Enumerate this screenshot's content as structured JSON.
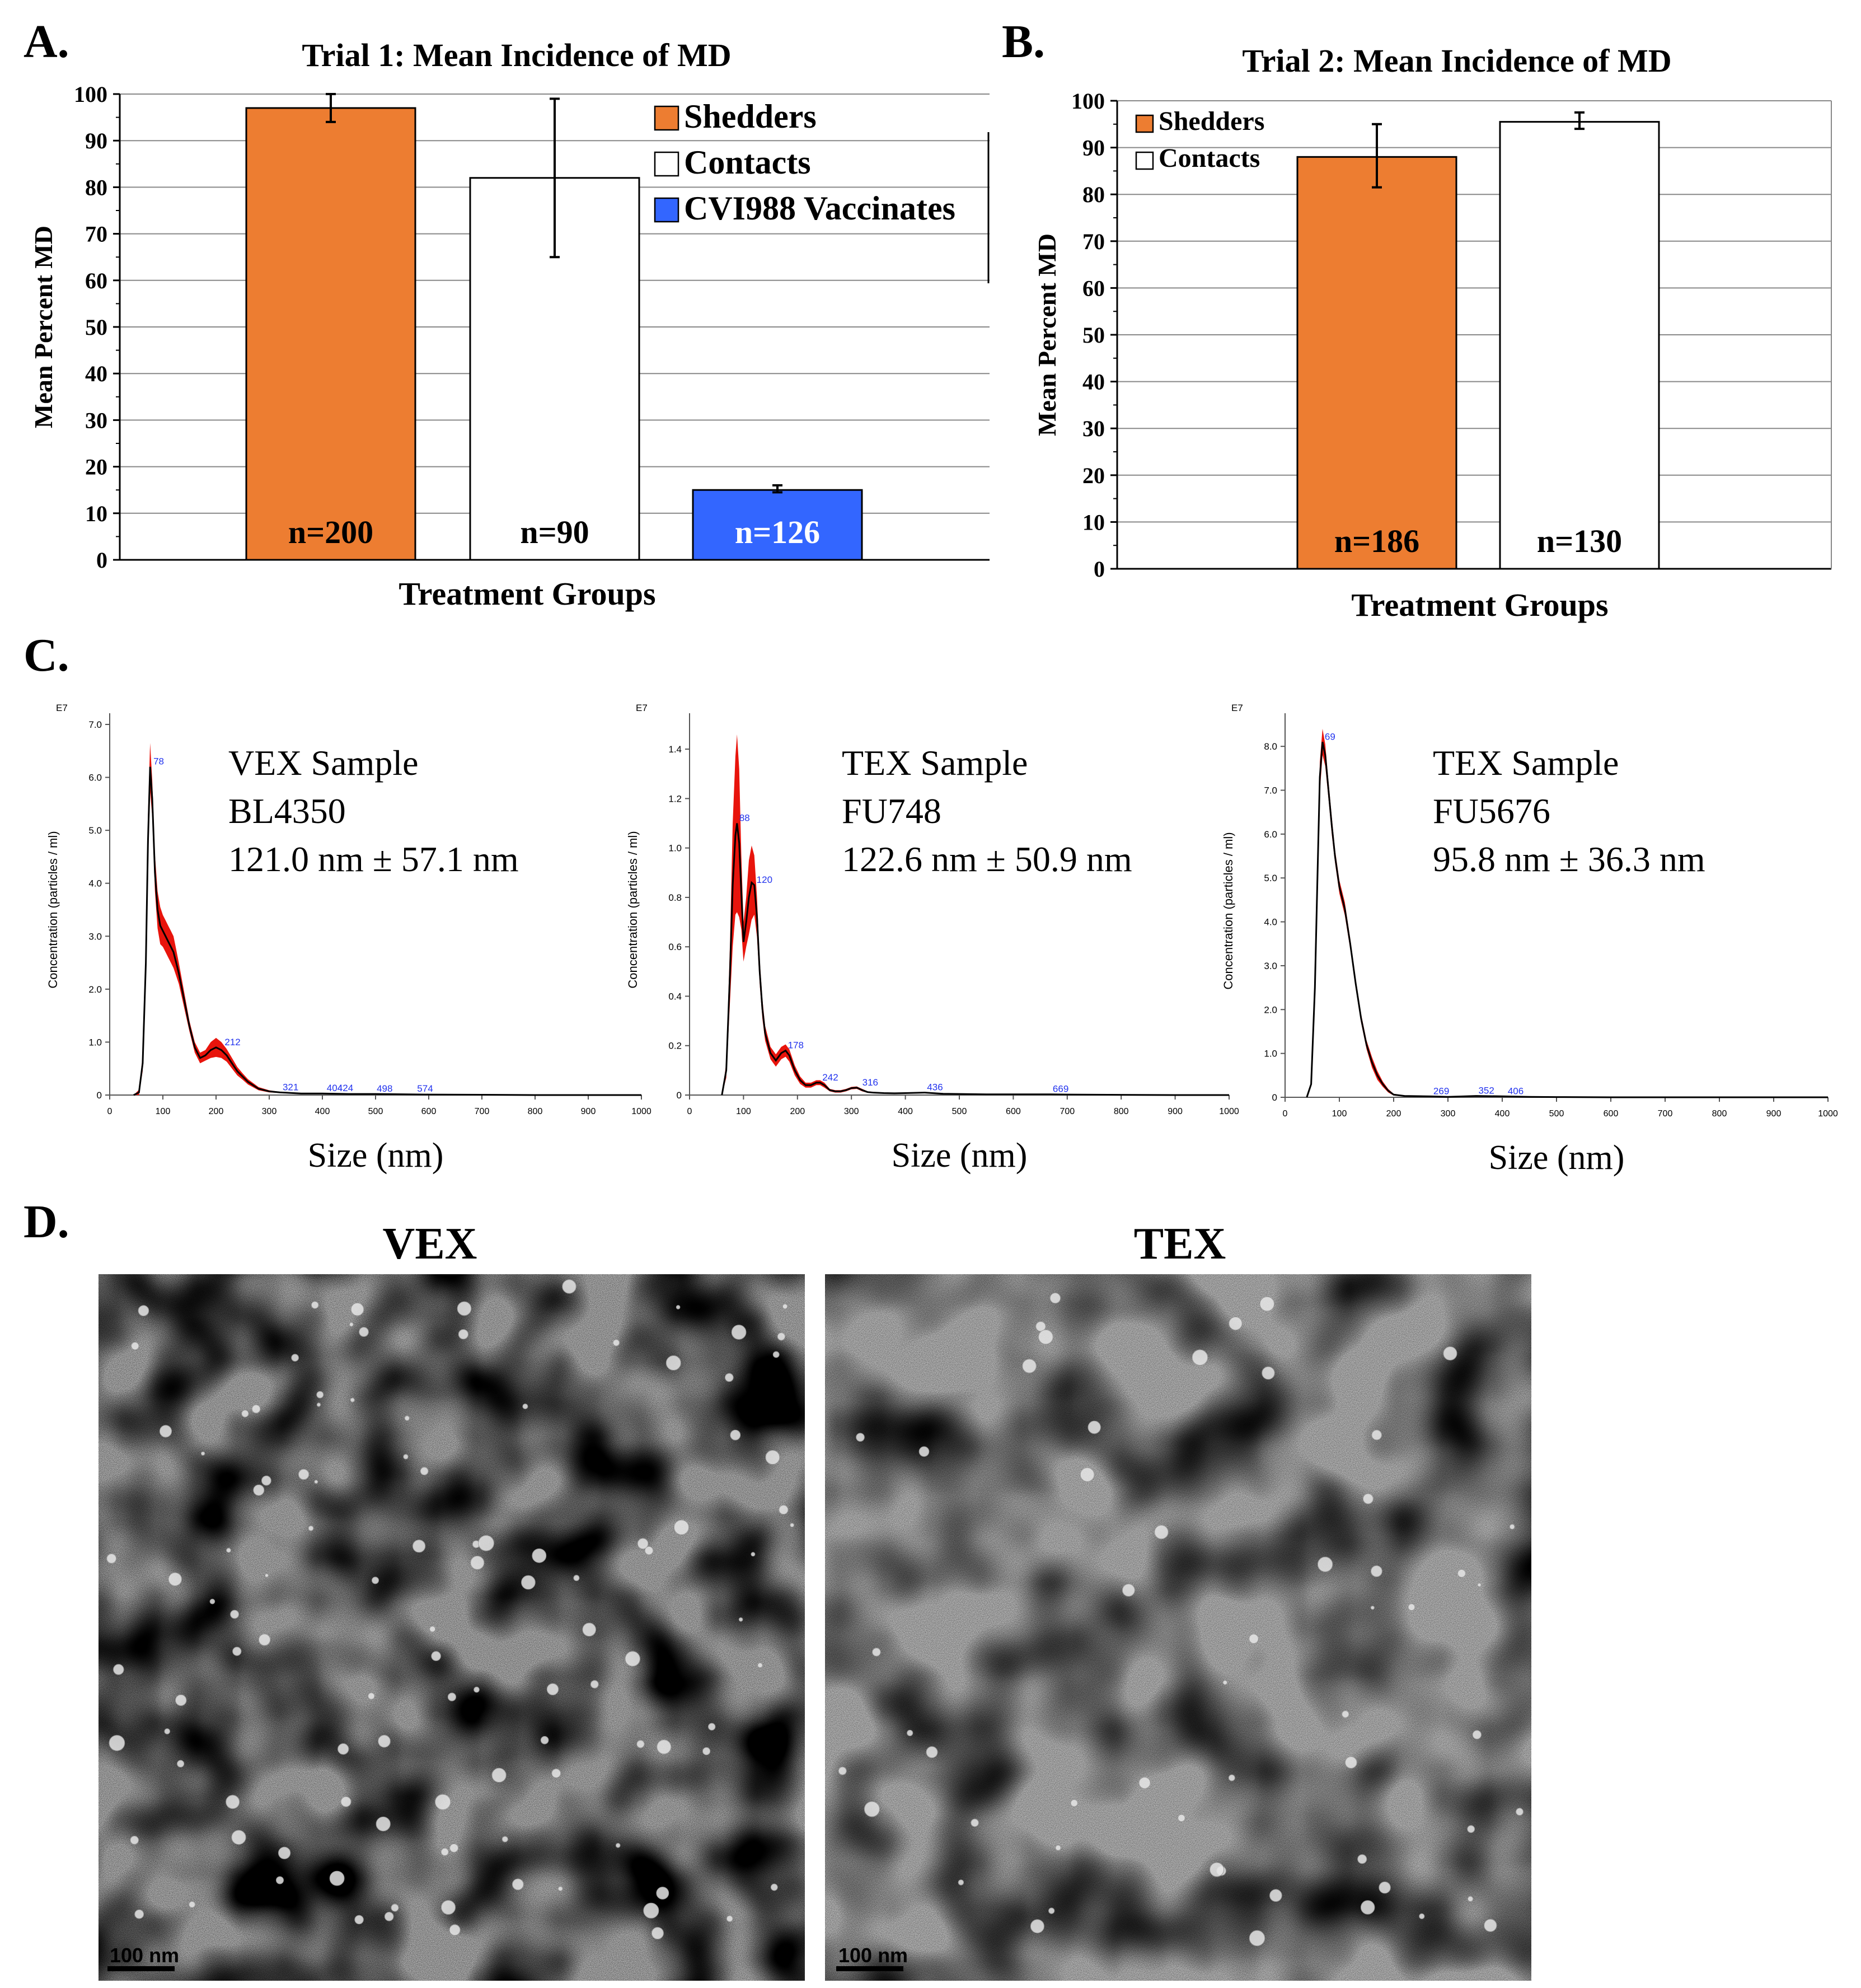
{
  "panel_labels": {
    "a": "A.",
    "b": "B.",
    "c": "C.",
    "d": "D."
  },
  "colors": {
    "shedders": "#ED7D31",
    "contacts": "#FFFFFF",
    "vaccinates": "#3366FF",
    "nta_fill": "#E8140C",
    "nta_line": "#000000",
    "nta_peak_label": "#2233EE"
  },
  "chart_data": [
    {
      "type": "bar",
      "panel": "A",
      "title": "Trial 1: Mean Incidence of MD",
      "xlabel": "Treatment Groups",
      "ylabel": "Mean Percent MD",
      "ylim": [
        0,
        100
      ],
      "yticks": [
        "0",
        "10",
        "20",
        "30",
        "40",
        "50",
        "60",
        "70",
        "80",
        "90",
        "100"
      ],
      "grid": true,
      "legend_position": "top-right",
      "categories": [
        "Shedders",
        "Contacts",
        "CVI988 Vaccinates"
      ],
      "values": [
        97,
        82,
        15
      ],
      "error_low": [
        94,
        65,
        14.5
      ],
      "error_high": [
        100,
        99,
        16
      ],
      "n_labels": [
        "n=200",
        "n=90",
        "n=126"
      ],
      "colors": [
        "#ED7D31",
        "#FFFFFF",
        "#3366FF"
      ]
    },
    {
      "type": "bar",
      "panel": "B",
      "title": "Trial 2: Mean Incidence of  MD",
      "xlabel": "Treatment Groups",
      "ylabel": "Mean Percent MD",
      "ylim": [
        0,
        100
      ],
      "yticks": [
        "0",
        "10",
        "20",
        "30",
        "40",
        "50",
        "60",
        "70",
        "80",
        "90",
        "100"
      ],
      "grid": true,
      "legend_position": "top-left",
      "categories": [
        "Shedders",
        "Contacts"
      ],
      "values": [
        88,
        95.5
      ],
      "error_low": [
        81.5,
        94
      ],
      "error_high": [
        95,
        97.5
      ],
      "n_labels": [
        "n=186",
        "n=130"
      ],
      "colors": [
        "#ED7D31",
        "#FFFFFF"
      ]
    },
    {
      "type": "line",
      "panel": "C1",
      "sample_type": "VEX Sample",
      "sample_id": "BL4350",
      "mean_size": "121.0 nm ± 57.1 nm",
      "exponent": "E7",
      "ylabel": "Concentration (particles / ml)",
      "xlabel": "Size (nm)",
      "xlim": [
        0,
        1000
      ],
      "ylim": [
        0,
        7
      ],
      "yticks": [
        "0",
        "1.0",
        "2.0",
        "3.0",
        "4.0",
        "5.0",
        "6.0",
        "7.0"
      ],
      "xticks": [
        "0",
        "100",
        "200",
        "300",
        "400",
        "500",
        "600",
        "700",
        "800",
        "900",
        "1000"
      ],
      "x": [
        45,
        55,
        62,
        68,
        72,
        76,
        80,
        85,
        90,
        95,
        100,
        105,
        110,
        115,
        120,
        125,
        130,
        140,
        150,
        160,
        170,
        180,
        190,
        200,
        210,
        220,
        230,
        240,
        250,
        260,
        280,
        300,
        320,
        340,
        360,
        400,
        450,
        500,
        600,
        700,
        800,
        900,
        1000
      ],
      "y": [
        0,
        0.05,
        0.6,
        2.5,
        4.8,
        6.2,
        5.6,
        4.2,
        3.5,
        3.2,
        3.1,
        3.0,
        2.9,
        2.8,
        2.7,
        2.5,
        2.3,
        1.8,
        1.3,
        0.9,
        0.7,
        0.75,
        0.85,
        0.9,
        0.85,
        0.75,
        0.6,
        0.45,
        0.35,
        0.25,
        0.12,
        0.07,
        0.05,
        0.04,
        0.03,
        0.03,
        0.02,
        0.02,
        0.01,
        0.005,
        0,
        0,
        0
      ],
      "band": [
        0,
        0.05,
        0.15,
        0.35,
        0.5,
        0.45,
        0.35,
        0.35,
        0.35,
        0.35,
        0.3,
        0.3,
        0.3,
        0.3,
        0.3,
        0.25,
        0.2,
        0.15,
        0.1,
        0.1,
        0.1,
        0.1,
        0.15,
        0.18,
        0.15,
        0.12,
        0.1,
        0.08,
        0.06,
        0.05,
        0.03,
        0.02,
        0.01,
        0.01,
        0.01,
        0.01,
        0.01,
        0.01,
        0.005,
        0,
        0,
        0,
        0
      ],
      "peaks": [
        {
          "label": "78",
          "x": 78,
          "y": 6.2
        },
        {
          "label": "212",
          "x": 212,
          "y": 0.9
        },
        {
          "label": "321",
          "x": 321,
          "y": 0.05
        },
        {
          "label": "404",
          "x": 404,
          "y": 0.03
        },
        {
          "label": "424",
          "x": 424,
          "y": 0.03
        },
        {
          "label": "498",
          "x": 498,
          "y": 0.02
        },
        {
          "label": "574",
          "x": 574,
          "y": 0.02
        }
      ]
    },
    {
      "type": "line",
      "panel": "C2",
      "sample_type": "TEX Sample",
      "sample_id": "FU748",
      "mean_size": "122.6 nm ± 50.9 nm",
      "exponent": "E7",
      "ylabel": "Concentration (particles / ml)",
      "xlabel": "Size (nm)",
      "xlim": [
        0,
        1000
      ],
      "ylim": [
        0,
        1.5
      ],
      "yticks": [
        "0",
        "0.2",
        "0.4",
        "0.6",
        "0.8",
        "1.0",
        "1.2",
        "1.4"
      ],
      "xticks": [
        "0",
        "100",
        "200",
        "300",
        "400",
        "500",
        "600",
        "700",
        "800",
        "900",
        "1000"
      ],
      "x": [
        60,
        68,
        75,
        80,
        85,
        88,
        92,
        96,
        100,
        105,
        110,
        115,
        120,
        125,
        130,
        135,
        140,
        150,
        160,
        170,
        178,
        185,
        195,
        205,
        215,
        225,
        235,
        242,
        250,
        260,
        270,
        280,
        290,
        300,
        310,
        320,
        330,
        340,
        360,
        380,
        400,
        436,
        470,
        550,
        669,
        700,
        800,
        900,
        1000
      ],
      "y": [
        0,
        0.1,
        0.5,
        0.85,
        1.05,
        1.1,
        1.02,
        0.82,
        0.62,
        0.7,
        0.8,
        0.86,
        0.85,
        0.72,
        0.5,
        0.35,
        0.25,
        0.17,
        0.14,
        0.17,
        0.18,
        0.16,
        0.1,
        0.06,
        0.04,
        0.04,
        0.05,
        0.05,
        0.04,
        0.02,
        0.015,
        0.015,
        0.02,
        0.028,
        0.03,
        0.02,
        0.012,
        0.01,
        0.008,
        0.007,
        0.008,
        0.01,
        0.005,
        0.003,
        0.003,
        0.002,
        0.001,
        0,
        0
      ],
      "band": [
        0,
        0.03,
        0.12,
        0.25,
        0.32,
        0.36,
        0.3,
        0.15,
        0.08,
        0.1,
        0.15,
        0.15,
        0.12,
        0.08,
        0.05,
        0.04,
        0.03,
        0.025,
        0.025,
        0.025,
        0.025,
        0.025,
        0.02,
        0.015,
        0.01,
        0.01,
        0.01,
        0.01,
        0.01,
        0.005,
        0.005,
        0.005,
        0.005,
        0.005,
        0.005,
        0.005,
        0.003,
        0.003,
        0.002,
        0.002,
        0.002,
        0.002,
        0.001,
        0,
        0,
        0,
        0,
        0,
        0
      ],
      "peaks": [
        {
          "label": "88",
          "x": 88,
          "y": 1.1
        },
        {
          "label": "120",
          "x": 120,
          "y": 0.85
        },
        {
          "label": "178",
          "x": 178,
          "y": 0.18
        },
        {
          "label": "242",
          "x": 242,
          "y": 0.05
        },
        {
          "label": "316",
          "x": 316,
          "y": 0.03
        },
        {
          "label": "436",
          "x": 436,
          "y": 0.01
        },
        {
          "label": "669",
          "x": 669,
          "y": 0.003
        }
      ]
    },
    {
      "type": "line",
      "panel": "C3",
      "sample_type": "TEX Sample",
      "sample_id": "FU5676",
      "mean_size": "95.8 nm ± 36.3 nm",
      "exponent": "E7",
      "ylabel": "Concentration (particles / ml)",
      "xlabel": "Size (nm)",
      "xlim": [
        0,
        1000
      ],
      "ylim": [
        0,
        8.5
      ],
      "yticks": [
        "0",
        "1.0",
        "2.0",
        "3.0",
        "4.0",
        "5.0",
        "6.0",
        "7.0",
        "8.0"
      ],
      "xticks": [
        "0",
        "100",
        "200",
        "300",
        "400",
        "500",
        "600",
        "700",
        "800",
        "900",
        "1000"
      ],
      "x": [
        40,
        48,
        55,
        60,
        64,
        69,
        74,
        80,
        86,
        92,
        100,
        110,
        120,
        130,
        140,
        150,
        160,
        170,
        180,
        190,
        200,
        220,
        269,
        300,
        352,
        406,
        450,
        500,
        600,
        700,
        800,
        900,
        1000
      ],
      "y": [
        0,
        0.3,
        2.5,
        5.2,
        7.3,
        8.1,
        7.8,
        7.0,
        6.2,
        5.5,
        4.8,
        4.3,
        3.5,
        2.6,
        1.8,
        1.2,
        0.8,
        0.5,
        0.3,
        0.15,
        0.06,
        0.03,
        0.02,
        0.01,
        0.03,
        0.02,
        0.01,
        0.005,
        0,
        0,
        0,
        0,
        0
      ],
      "band": [
        0,
        0.05,
        0.2,
        0.3,
        0.35,
        0.3,
        0.25,
        0.2,
        0.2,
        0.15,
        0.15,
        0.15,
        0.12,
        0.1,
        0.1,
        0.1,
        0.12,
        0.1,
        0.06,
        0.04,
        0.02,
        0.01,
        0.01,
        0.005,
        0.01,
        0.005,
        0.005,
        0,
        0,
        0,
        0,
        0,
        0
      ],
      "peaks": [
        {
          "label": "69",
          "x": 69,
          "y": 8.1
        },
        {
          "label": "269",
          "x": 269,
          "y": 0.02
        },
        {
          "label": "352",
          "x": 352,
          "y": 0.03
        },
        {
          "label": "406",
          "x": 406,
          "y": 0.02
        }
      ]
    }
  ],
  "tem": {
    "vex_title": "VEX",
    "tex_title": "TEX",
    "scale_bar_label": "100 nm"
  }
}
